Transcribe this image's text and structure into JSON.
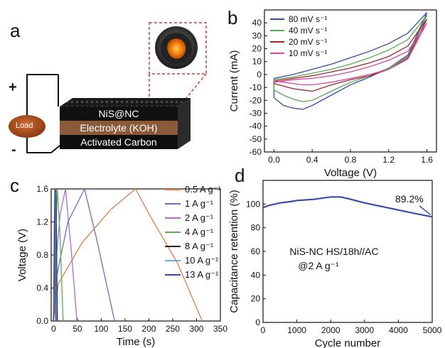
{
  "panels": {
    "a": "a",
    "b": "b",
    "c": "c",
    "d": "d"
  },
  "schematic": {
    "layers": [
      "NiS@NC",
      "Electrolyte (KOH)",
      "Activated Carbon"
    ],
    "load": "Load",
    "plus": "+",
    "minus": "-"
  },
  "chart_data": [
    {
      "type": "line",
      "panel": "b",
      "xlabel": "Voltage (V)",
      "ylabel": "Current (mA)",
      "xlim": [
        -0.1,
        1.7
      ],
      "ylim": [
        -60,
        50
      ],
      "xticks": [
        0.0,
        0.4,
        0.8,
        1.2,
        1.6
      ],
      "xtick_labels": [
        "0.0",
        "0.4",
        "0.8",
        "1.2",
        "1.6"
      ],
      "yticks": [
        -60,
        -50,
        -40,
        -30,
        -20,
        -10,
        0,
        10,
        20,
        30,
        40
      ],
      "ytick_labels": [
        "-60",
        "-50",
        "-40",
        "-30",
        "-20",
        "-10",
        "0",
        "10",
        "20",
        "30",
        "40"
      ],
      "legend_position": "top-left",
      "series": [
        {
          "name": "80 mV s⁻¹",
          "color": "#3a4aa8",
          "x": [
            0.0,
            0.2,
            0.4,
            0.6,
            0.8,
            1.0,
            1.2,
            1.4,
            1.6,
            1.4,
            1.2,
            1.0,
            0.8,
            0.6,
            0.4,
            0.3,
            0.2,
            0.1,
            0.0,
            0.0
          ],
          "values": [
            -3,
            0,
            4,
            8,
            13,
            18,
            24,
            32,
            48,
            15,
            5,
            -2,
            -8,
            -16,
            -24,
            -27,
            -26,
            -24,
            -18,
            -3
          ]
        },
        {
          "name": "40 mV s⁻¹",
          "color": "#5aa55a",
          "x": [
            0.0,
            0.2,
            0.4,
            0.6,
            0.8,
            1.0,
            1.2,
            1.4,
            1.6,
            1.4,
            1.2,
            1.0,
            0.8,
            0.6,
            0.4,
            0.3,
            0.2,
            0.1,
            0.0,
            0.0
          ],
          "values": [
            -4,
            -2,
            1,
            4,
            8,
            13,
            19,
            27,
            46,
            14,
            5,
            -1,
            -6,
            -13,
            -20,
            -21,
            -19,
            -16,
            -12,
            -4
          ]
        },
        {
          "name": "20 mV s⁻¹",
          "color": "#9b2a2a",
          "x": [
            0.0,
            0.2,
            0.4,
            0.6,
            0.8,
            1.0,
            1.2,
            1.4,
            1.6,
            1.4,
            1.2,
            1.0,
            0.8,
            0.6,
            0.4,
            0.3,
            0.2,
            0.1,
            0.0,
            0.0
          ],
          "values": [
            -5,
            -3,
            -1,
            2,
            5,
            9,
            14,
            22,
            43,
            13,
            4,
            -1,
            -4,
            -8,
            -13,
            -12,
            -11,
            -9,
            -7,
            -5
          ]
        },
        {
          "name": "10 mV s⁻¹",
          "color": "#d04aa0",
          "x": [
            0.0,
            0.2,
            0.4,
            0.6,
            0.8,
            1.0,
            1.2,
            1.4,
            1.6,
            1.4,
            1.2,
            1.0,
            0.8,
            0.6,
            0.4,
            0.3,
            0.2,
            0.1,
            0.0,
            0.0
          ],
          "values": [
            -6,
            -4,
            -3,
            -1,
            2,
            6,
            11,
            18,
            40,
            12,
            4,
            0,
            -3,
            -6,
            -8,
            -8,
            -7,
            -6,
            -5,
            -6
          ]
        }
      ]
    },
    {
      "type": "line",
      "panel": "c",
      "xlabel": "Time (s)",
      "ylabel": "Voltage (V)",
      "xlim": [
        -5,
        350
      ],
      "ylim": [
        0,
        1.6
      ],
      "xticks": [
        0,
        50,
        100,
        150,
        200,
        250,
        300,
        350
      ],
      "xtick_labels": [
        "0",
        "50",
        "100",
        "150",
        "200",
        "250",
        "300",
        "350"
      ],
      "yticks": [
        0.0,
        0.4,
        0.8,
        1.2,
        1.6
      ],
      "ytick_labels": [
        "0.0",
        "0.4",
        "0.8",
        "1.2",
        "1.6"
      ],
      "legend_position": "right",
      "series": [
        {
          "name": "0.5 A g⁻¹",
          "color": "#e07a4a",
          "x": [
            0,
            10,
            60,
            120,
            172,
            200,
            260,
            312
          ],
          "values": [
            0,
            0.45,
            0.95,
            1.35,
            1.6,
            1.3,
            0.7,
            0
          ]
        },
        {
          "name": "1 A g⁻¹",
          "color": "#6a70c0",
          "x": [
            0,
            5,
            30,
            65,
            90,
            128
          ],
          "values": [
            0,
            0.5,
            1.2,
            1.6,
            1.0,
            0
          ]
        },
        {
          "name": "2 A g⁻¹",
          "color": "#b06ac8",
          "x": [
            0,
            3,
            14,
            25,
            38,
            49
          ],
          "values": [
            0,
            0.6,
            1.3,
            1.6,
            0.8,
            0
          ]
        },
        {
          "name": "4 A g⁻¹",
          "color": "#5aaa5a",
          "x": [
            0,
            2,
            8,
            13,
            20
          ],
          "values": [
            0,
            0.7,
            1.6,
            1.1,
            0
          ]
        },
        {
          "name": "8 A g⁻¹",
          "color": "#222222",
          "x": [
            0,
            2,
            5,
            8
          ],
          "values": [
            0,
            0.8,
            1.6,
            0
          ]
        },
        {
          "name": "10 A g⁻¹",
          "color": "#6ab0d0",
          "x": [
            0,
            1.5,
            3.5,
            6
          ],
          "values": [
            0,
            0.8,
            1.6,
            0
          ]
        },
        {
          "name": "13 A g⁻¹",
          "color": "#3a4a9a",
          "x": [
            0,
            1,
            2.5,
            4.5
          ],
          "values": [
            0,
            0.8,
            1.6,
            0
          ]
        }
      ]
    },
    {
      "type": "line",
      "panel": "d",
      "xlabel": "Cycle number",
      "ylabel": "Capacitance retention (%)",
      "xlim": [
        0,
        5000
      ],
      "ylim": [
        0,
        120
      ],
      "xticks": [
        0,
        1000,
        2000,
        3000,
        4000,
        5000
      ],
      "xtick_labels": [
        "0",
        "1000",
        "2000",
        "3000",
        "4000",
        "5000"
      ],
      "yticks": [
        0,
        20,
        40,
        60,
        80,
        100
      ],
      "ytick_labels": [
        "0",
        "20",
        "40",
        "60",
        "80",
        "100"
      ],
      "annotations": [
        "NiS-NC HS/18h//AC",
        "@2 A g⁻¹",
        "89.2%"
      ],
      "series": [
        {
          "name": "",
          "color": "#3a4aa8",
          "x": [
            0,
            200,
            500,
            800,
            1000,
            1500,
            2000,
            2300,
            2600,
            3000,
            3500,
            4000,
            4500,
            5000
          ],
          "values": [
            97,
            99,
            101,
            102,
            103,
            104,
            106,
            106,
            104,
            101,
            98,
            95,
            92,
            89.2
          ]
        }
      ]
    }
  ]
}
